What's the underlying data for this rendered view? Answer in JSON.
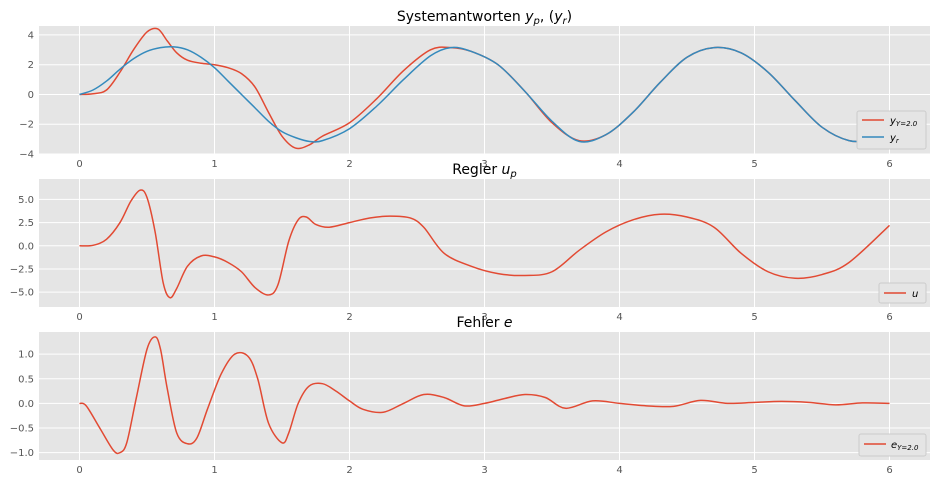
{
  "chart_data": [
    {
      "type": "line",
      "title": "Systemantworten y_p, (y_r)",
      "title_parts": {
        "main": "Systemantworten ",
        "v1": "y",
        "s1": "p",
        "mid": ", (",
        "v2": "y",
        "s2": "r",
        "end": ")"
      },
      "xlim": [
        -0.3,
        6.3
      ],
      "ylim": [
        -4,
        4.6
      ],
      "xticks": [
        0,
        1,
        2,
        3,
        4,
        5,
        6
      ],
      "xtick_labels": [
        "0",
        "1",
        "2",
        "3",
        "4",
        "5",
        "6"
      ],
      "yticks": [
        -4,
        -2,
        0,
        2,
        4
      ],
      "ytick_labels": [
        "−4",
        "−2",
        "0",
        "2",
        "4"
      ],
      "grid": true,
      "legend_position": "bottom-right",
      "series": [
        {
          "name": "y_{Y=2.0}",
          "color": "#e24a33",
          "x": [
            0,
            0.1,
            0.2,
            0.3,
            0.4,
            0.5,
            0.58,
            0.65,
            0.72,
            0.8,
            0.9,
            1.0,
            1.1,
            1.2,
            1.3,
            1.4,
            1.5,
            1.6,
            1.7,
            1.8,
            2.0,
            2.2,
            2.4,
            2.6,
            2.75,
            2.9,
            3.1,
            3.3,
            3.5,
            3.7,
            3.9,
            4.1,
            4.3,
            4.5,
            4.7,
            4.9,
            5.1,
            5.3,
            5.5,
            5.7,
            5.85,
            6.0
          ],
          "y": [
            0,
            0.05,
            0.3,
            1.5,
            3.0,
            4.2,
            4.4,
            3.6,
            2.8,
            2.3,
            2.1,
            2.0,
            1.8,
            1.4,
            0.5,
            -1.2,
            -2.8,
            -3.6,
            -3.4,
            -2.8,
            -1.9,
            -0.3,
            1.6,
            3.0,
            3.15,
            2.9,
            2.0,
            0.2,
            -1.9,
            -3.1,
            -2.7,
            -1.2,
            0.8,
            2.5,
            3.15,
            2.8,
            1.5,
            -0.4,
            -2.2,
            -3.1,
            -3.0,
            -2.3
          ]
        },
        {
          "name": "y_r",
          "color": "#348abd",
          "x": [
            0,
            0.1,
            0.2,
            0.3,
            0.4,
            0.5,
            0.6,
            0.7,
            0.8,
            0.9,
            1.0,
            1.1,
            1.2,
            1.3,
            1.4,
            1.5,
            1.6,
            1.7,
            1.8,
            2.0,
            2.2,
            2.4,
            2.6,
            2.75,
            2.9,
            3.1,
            3.3,
            3.5,
            3.7,
            3.9,
            4.1,
            4.3,
            4.5,
            4.7,
            4.9,
            5.1,
            5.3,
            5.5,
            5.7,
            5.85,
            6.0
          ],
          "y": [
            0,
            0.3,
            0.9,
            1.7,
            2.4,
            2.9,
            3.15,
            3.2,
            3.0,
            2.5,
            1.8,
            0.9,
            0.0,
            -0.9,
            -1.8,
            -2.5,
            -2.9,
            -3.15,
            -3.1,
            -2.3,
            -0.8,
            1.0,
            2.6,
            3.15,
            2.9,
            2.0,
            0.2,
            -1.8,
            -3.15,
            -2.7,
            -1.2,
            0.8,
            2.5,
            3.15,
            2.8,
            1.5,
            -0.4,
            -2.2,
            -3.1,
            -3.0,
            -2.3
          ]
        }
      ]
    },
    {
      "type": "line",
      "title": "Regler u_p",
      "title_parts": {
        "main": "Regler ",
        "v1": "u",
        "s1": "p"
      },
      "xlim": [
        -0.3,
        6.3
      ],
      "ylim": [
        -6.6,
        7.2
      ],
      "xticks": [
        0,
        1,
        2,
        3,
        4,
        5,
        6
      ],
      "xtick_labels": [
        "0",
        "1",
        "2",
        "3",
        "4",
        "5",
        "6"
      ],
      "yticks": [
        -5,
        -2.5,
        0,
        2.5,
        5
      ],
      "ytick_labels": [
        "−5.0",
        "−2.5",
        "0.0",
        "2.5",
        "5.0"
      ],
      "grid": true,
      "legend_position": "bottom-right",
      "series": [
        {
          "name": "u",
          "color": "#e24a33",
          "x": [
            0,
            0.1,
            0.2,
            0.3,
            0.38,
            0.45,
            0.5,
            0.56,
            0.62,
            0.67,
            0.72,
            0.8,
            0.9,
            1.0,
            1.1,
            1.2,
            1.3,
            1.4,
            1.47,
            1.55,
            1.62,
            1.68,
            1.75,
            1.85,
            2.0,
            2.15,
            2.3,
            2.45,
            2.55,
            2.7,
            2.9,
            3.1,
            3.3,
            3.5,
            3.7,
            3.9,
            4.1,
            4.3,
            4.5,
            4.7,
            4.9,
            5.1,
            5.3,
            5.5,
            5.7,
            6.0
          ],
          "y": [
            0,
            0.05,
            0.7,
            2.5,
            4.8,
            6.0,
            5.2,
            1.5,
            -4.0,
            -5.6,
            -4.6,
            -2.2,
            -1.1,
            -1.2,
            -1.8,
            -2.8,
            -4.5,
            -5.3,
            -4.2,
            0.5,
            2.8,
            3.1,
            2.3,
            2.0,
            2.5,
            3.0,
            3.2,
            3.0,
            2.0,
            -0.8,
            -2.2,
            -3.0,
            -3.2,
            -2.8,
            -0.5,
            1.5,
            2.8,
            3.4,
            3.1,
            2.0,
            -0.8,
            -2.8,
            -3.5,
            -3.1,
            -1.8,
            2.2
          ]
        }
      ]
    },
    {
      "type": "line",
      "title": "Fehler e",
      "title_parts": {
        "main": "Fehler ",
        "v1": "e"
      },
      "xlim": [
        -0.3,
        6.3
      ],
      "ylim": [
        -1.15,
        1.45
      ],
      "xticks": [
        0,
        1,
        2,
        3,
        4,
        5,
        6
      ],
      "xtick_labels": [
        "0",
        "1",
        "2",
        "3",
        "4",
        "5",
        "6"
      ],
      "yticks": [
        -1,
        -0.5,
        0,
        0.5,
        1
      ],
      "ytick_labels": [
        "−1.0",
        "−0.5",
        "0.0",
        "0.5",
        "1.0"
      ],
      "grid": true,
      "legend_position": "bottom-right",
      "series": [
        {
          "name": "e_{Y=2.0}",
          "color": "#e24a33",
          "x": [
            0,
            0.05,
            0.15,
            0.25,
            0.3,
            0.35,
            0.42,
            0.5,
            0.56,
            0.6,
            0.65,
            0.72,
            0.8,
            0.87,
            0.95,
            1.05,
            1.15,
            1.25,
            1.32,
            1.4,
            1.5,
            1.55,
            1.62,
            1.7,
            1.8,
            1.9,
            2.0,
            2.1,
            2.25,
            2.4,
            2.55,
            2.7,
            2.85,
            3.0,
            3.15,
            3.3,
            3.45,
            3.6,
            3.8,
            4.0,
            4.2,
            4.4,
            4.6,
            4.8,
            5.0,
            5.2,
            5.4,
            5.6,
            5.8,
            6.0
          ],
          "y": [
            0,
            -0.05,
            -0.5,
            -0.95,
            -1.0,
            -0.8,
            0.1,
            1.1,
            1.35,
            1.1,
            0.3,
            -0.6,
            -0.82,
            -0.7,
            -0.1,
            0.6,
            1.0,
            0.95,
            0.5,
            -0.4,
            -0.8,
            -0.6,
            0.0,
            0.35,
            0.4,
            0.25,
            0.05,
            -0.12,
            -0.18,
            0.0,
            0.18,
            0.12,
            -0.05,
            0.0,
            0.1,
            0.18,
            0.12,
            -0.1,
            0.05,
            0.0,
            -0.05,
            -0.06,
            0.06,
            0.0,
            0.02,
            0.04,
            0.02,
            -0.03,
            0.01,
            0.0
          ]
        }
      ]
    }
  ]
}
